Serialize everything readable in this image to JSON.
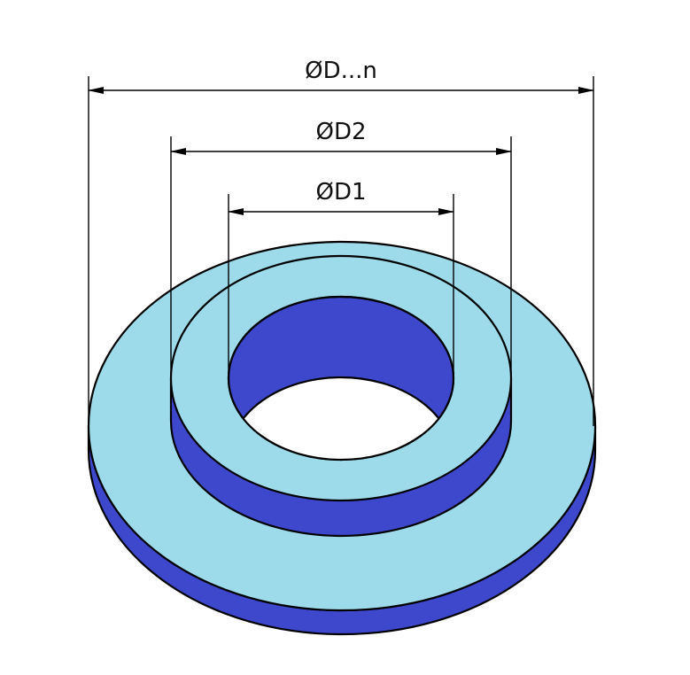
{
  "dimensions": {
    "outer_label": "ØD...n",
    "middle_label": "ØD2",
    "inner_label": "ØD1"
  },
  "colors": {
    "top_face": "#9ddbea",
    "side_face": "#3e48cc",
    "line": "#000000",
    "background": "#ffffff"
  }
}
